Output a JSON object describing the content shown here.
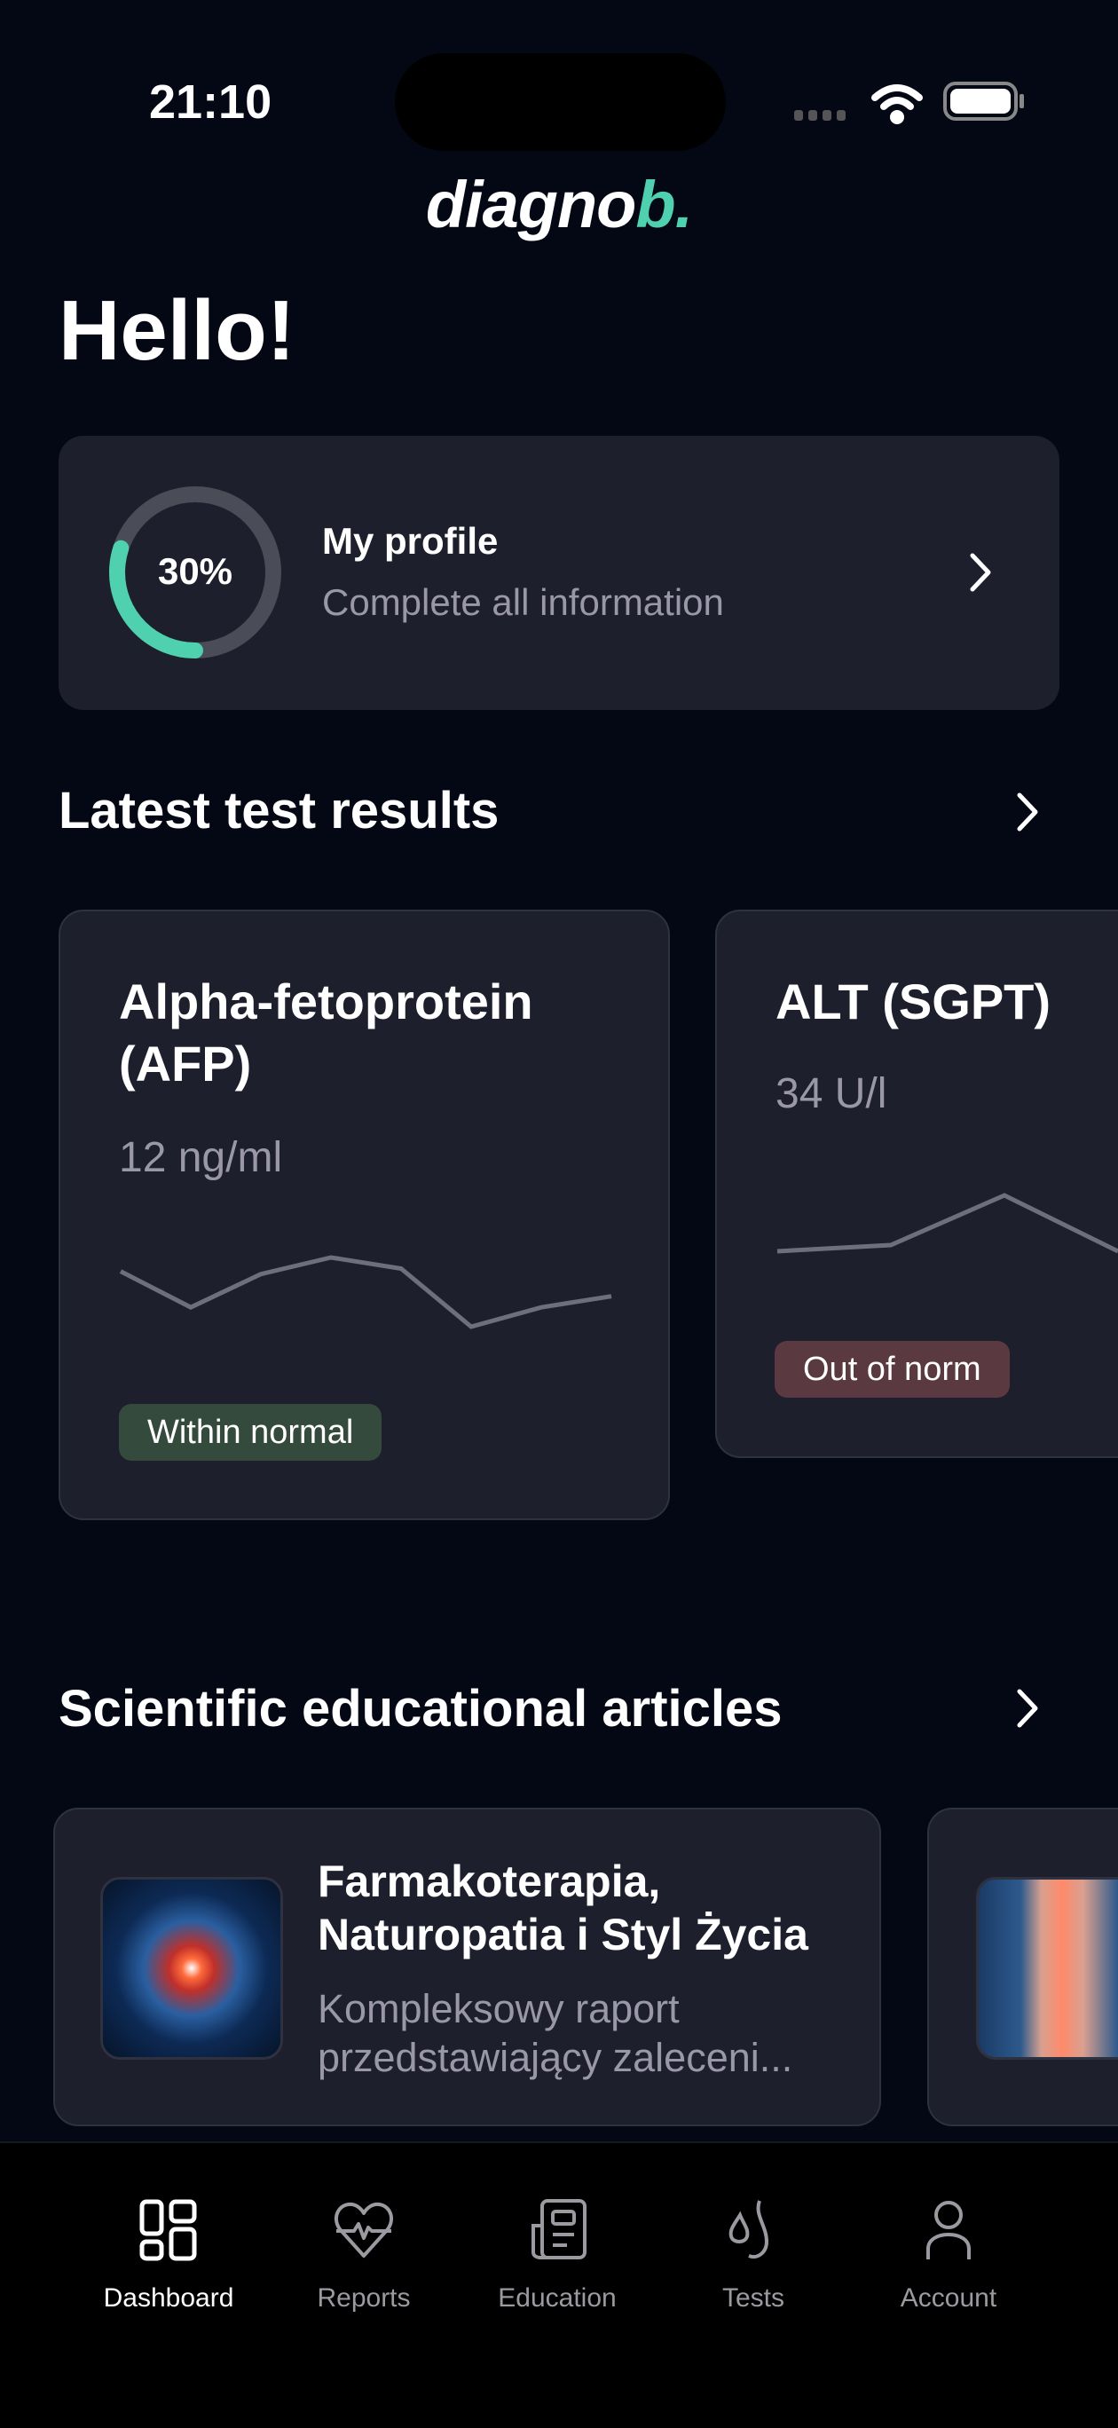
{
  "status_bar": {
    "time": "21:10"
  },
  "logo": {
    "text": "diagno",
    "accent": "b."
  },
  "greeting": "Hello!",
  "profile": {
    "title": "My profile",
    "subtitle": "Complete all information",
    "progress_percent": 30,
    "progress_label": "30%"
  },
  "latest_results": {
    "title": "Latest test results",
    "cards": [
      {
        "name": "Alpha-fetoprotein",
        "name2": "(AFP)",
        "value": "12 ng/ml",
        "status": "Within normal",
        "status_color": "#344a3c",
        "trend": [
          10.5,
          9.2,
          10.4,
          11,
          10.6,
          8.5,
          9.2,
          9.6
        ]
      },
      {
        "name": "ALT (SGPT)",
        "value": "34 U/l",
        "status": "Out of norm",
        "status_color": "#5a3a40",
        "trend": [
          9.2,
          9.4,
          11,
          9.2
        ]
      }
    ]
  },
  "articles": {
    "title": "Scientific educational articles",
    "items": [
      {
        "title1": "Farmakoterapia,",
        "title2": "Naturopatia i Styl Życia",
        "desc1": "Kompleksowy raport",
        "desc2": "przedstawiający zaleceni..."
      }
    ]
  },
  "tabs": [
    {
      "label": "Dashboard",
      "icon": "dashboard-grid-icon"
    },
    {
      "label": "Reports",
      "icon": "heart-pulse-icon"
    },
    {
      "label": "Education",
      "icon": "newspaper-icon"
    },
    {
      "label": "Tests",
      "icon": "drops-icon"
    },
    {
      "label": "Account",
      "icon": "person-icon"
    }
  ],
  "colors": {
    "accent": "#4fd1b0",
    "background": "#040814",
    "card": "#1d1f2c"
  }
}
